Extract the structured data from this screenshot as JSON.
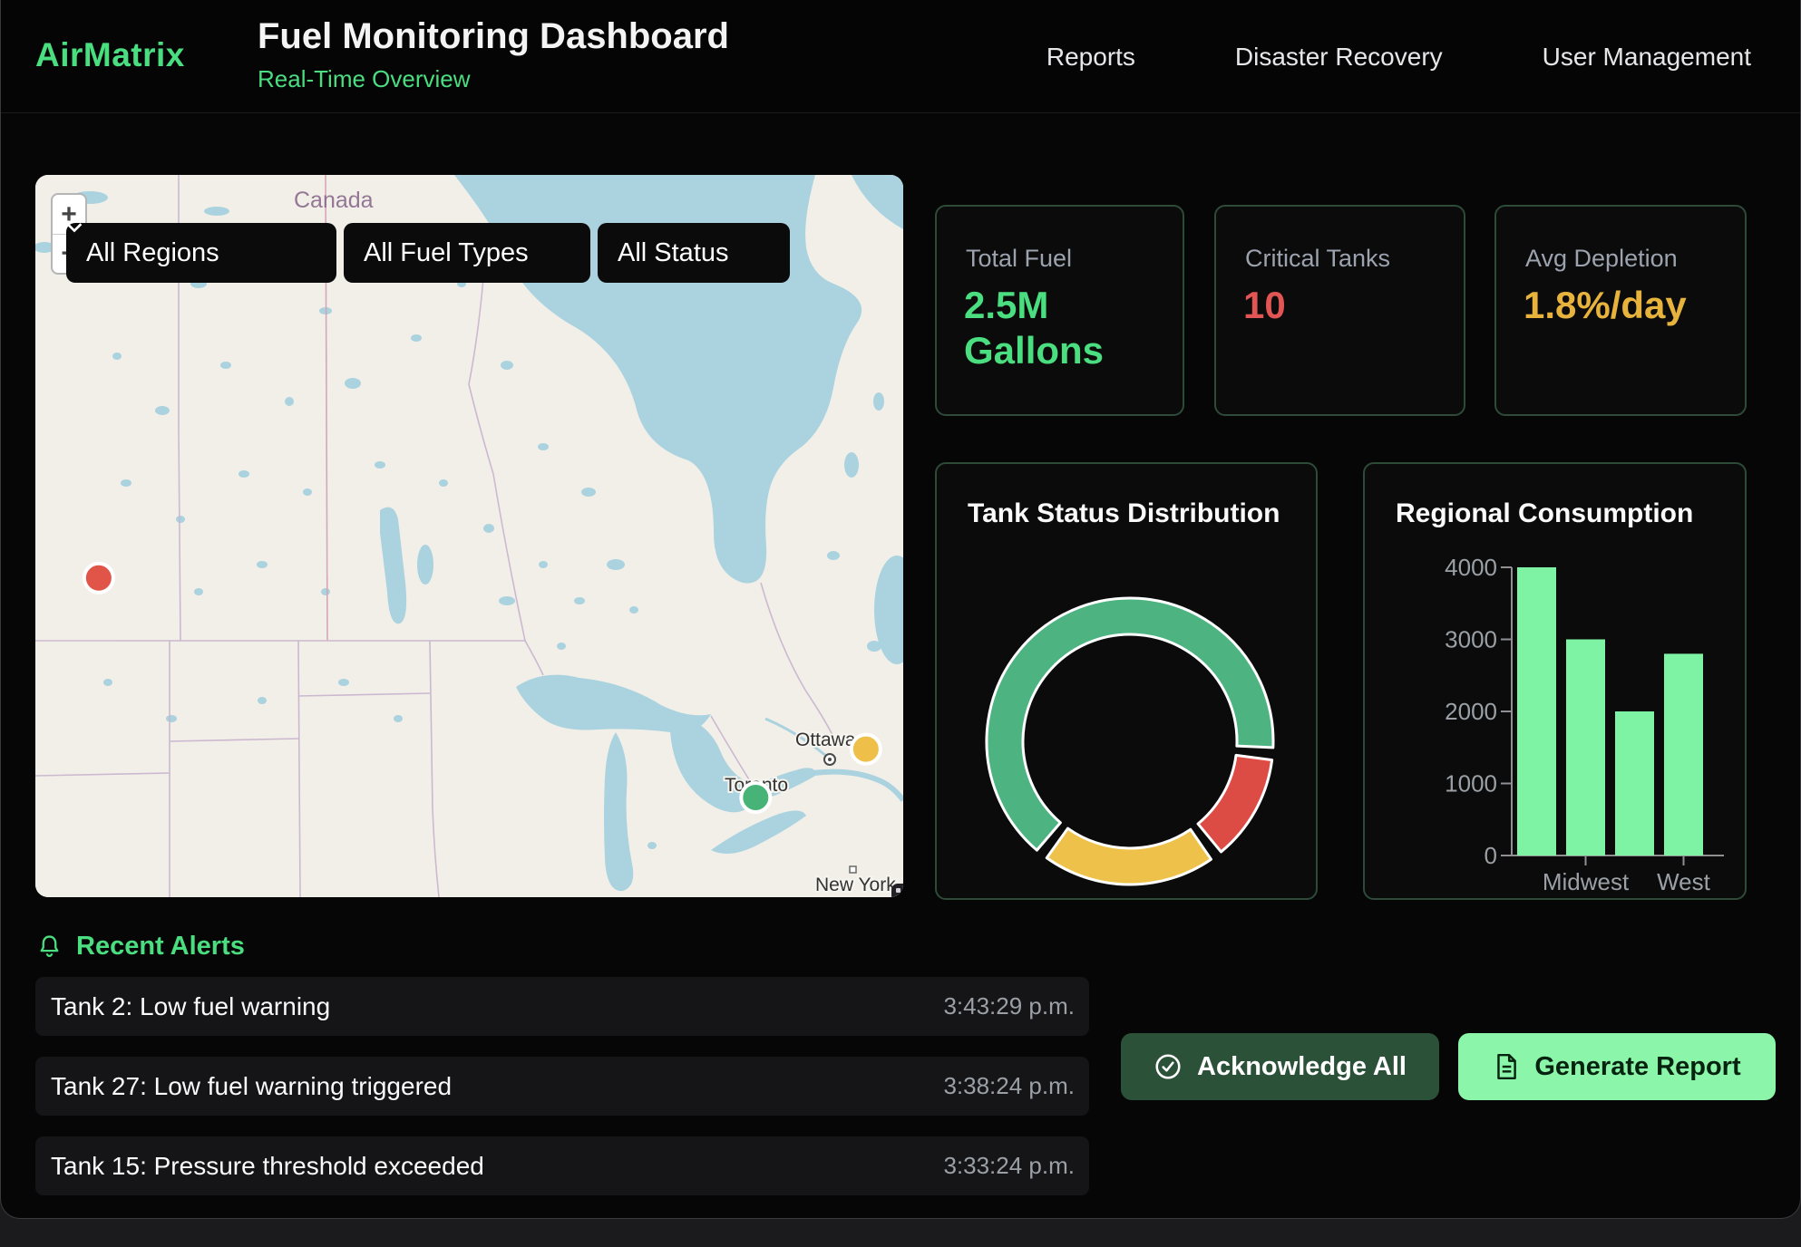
{
  "header": {
    "logo": "AirMatrix",
    "title": "Fuel Monitoring Dashboard",
    "subtitle": "Real-Time Overview",
    "nav": [
      {
        "label": "Reports"
      },
      {
        "label": "Disaster Recovery"
      },
      {
        "label": "User Management"
      }
    ]
  },
  "map": {
    "zoom_in": "+",
    "zoom_out": "−",
    "filters": [
      {
        "label": "All Regions"
      },
      {
        "label": "All Fuel Types"
      },
      {
        "label": "All Status"
      }
    ],
    "labels": {
      "country": "Canada",
      "ottawa": "Ottawa",
      "toronto": "Toronto",
      "new_york": "New York"
    },
    "markers": [
      {
        "name": "critical-tank-marker",
        "color": "#e15549",
        "x": 7.3,
        "y": 55.8
      },
      {
        "name": "warning-tank-marker",
        "color": "#eec04a",
        "x": 95.7,
        "y": 79.5
      },
      {
        "name": "ok-tank-marker",
        "color": "#47b376",
        "x": 83.0,
        "y": 86.2
      }
    ]
  },
  "kpis": [
    {
      "label": "Total Fuel",
      "value": "2.5M Gallons",
      "color": "#4ade80"
    },
    {
      "label": "Critical Tanks",
      "value": "10",
      "color": "#e25555"
    },
    {
      "label": "Avg Depletion",
      "value": "1.8%/day",
      "color": "#e8b33c"
    }
  ],
  "chart_data": [
    {
      "type": "pie",
      "title": "Tank Status Distribution",
      "legend": "none",
      "donut": true,
      "start_angle_deg": 218,
      "gap_deg": 5,
      "outer_r": 158,
      "inner_r": 118,
      "segments": [
        {
          "label": "green",
          "deg": 237,
          "pct": 65.8,
          "color": "#4cb381"
        },
        {
          "label": "red",
          "deg": 48,
          "pct": 13.3,
          "color": "#dd4b45"
        },
        {
          "label": "yellow",
          "deg": 75,
          "pct": 20.9,
          "color": "#eec24a"
        }
      ]
    },
    {
      "type": "bar",
      "title": "Regional Consumption",
      "categories": [
        "",
        "Midwest",
        "",
        "West"
      ],
      "values": [
        4000,
        3000,
        2000,
        2800
      ],
      "yticks": [
        0,
        1000,
        2000,
        3000,
        4000
      ],
      "ylim": [
        0,
        4000
      ],
      "grid": false,
      "bar_color": "#7ef3a3",
      "axis_color": "#8f8f94",
      "tick_label_color": "#9aa0a6"
    }
  ],
  "alerts": {
    "title": "Recent Alerts",
    "items": [
      {
        "text": "Tank 2: Low fuel warning",
        "time": "3:43:29 p.m."
      },
      {
        "text": "Tank 27: Low fuel warning triggered",
        "time": "3:38:24 p.m."
      },
      {
        "text": "Tank 15: Pressure threshold exceeded",
        "time": "3:33:24 p.m."
      }
    ]
  },
  "actions": {
    "acknowledge": "Acknowledge All",
    "generate": "Generate Report"
  },
  "colors": {
    "accent_green": "#4ade80",
    "critical_red": "#e25555",
    "warning_yellow": "#e8b33c",
    "card_border": "#2e4b3a",
    "bar_green": "#7ef3a3",
    "map_water": "#aad3df",
    "map_land": "#f2efe9"
  }
}
